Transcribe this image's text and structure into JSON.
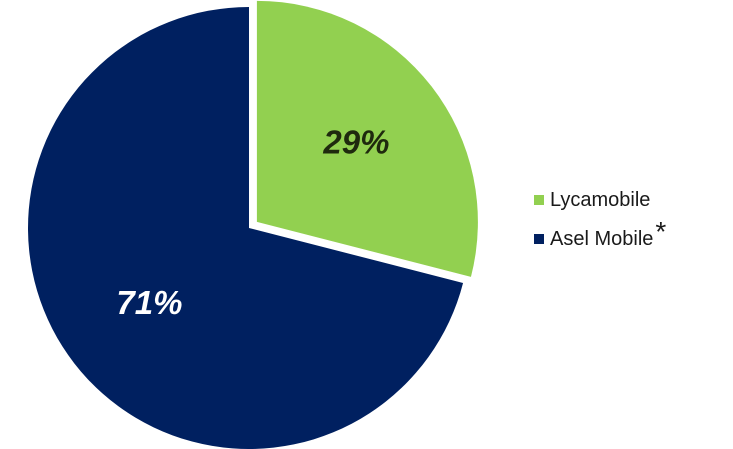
{
  "chart_data": {
    "type": "pie",
    "slices": [
      {
        "name": "Lycamobile",
        "value": 29,
        "label": "29%",
        "color": "#92d050",
        "label_color": "#1f2a0e"
      },
      {
        "name": "Asel Mobile",
        "value": 71,
        "label": "71%",
        "color": "#002060",
        "label_color": "#ffffff"
      }
    ],
    "legend_placement": "right",
    "exploded_slice": "Lycamobile"
  },
  "legend": {
    "items": [
      {
        "label": "Lycamobile",
        "mark": "",
        "color": "#92d050"
      },
      {
        "label": "Asel Mobile",
        "mark": "*",
        "color": "#002060"
      }
    ]
  }
}
